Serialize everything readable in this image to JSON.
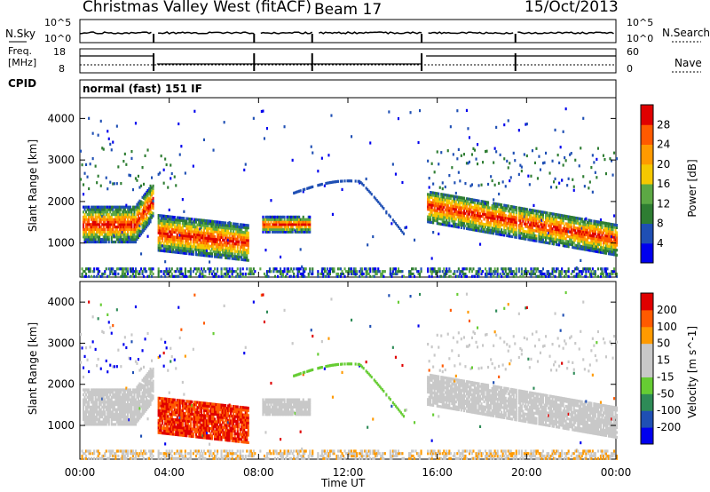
{
  "header": {
    "station": "Christmas Valley West (fitACF)",
    "beam": "Beam 17",
    "date": "15/Oct/2013"
  },
  "labels": {
    "nsky": "N.Sky",
    "nsearch": "N.Search",
    "freq_line1": "Freq.",
    "freq_line2": "[MHz]",
    "nave": "Nave",
    "cpid": "CPID",
    "mode": "normal (fast) 151 IF",
    "nsky_ticks": [
      "10^5",
      "10^0"
    ],
    "nsearch_ticks": [
      "10^5",
      "10^0"
    ],
    "freq_ticks": [
      "18",
      "8"
    ],
    "nave_ticks": [
      "60",
      "0"
    ]
  },
  "colors": {
    "power_scale": [
      "#0000ee",
      "#1f4fb4",
      "#2e7d32",
      "#5ca844",
      "#f5c800",
      "#ff9a00",
      "#ff5a00",
      "#e00000"
    ],
    "velocity_scale": [
      "#e00000",
      "#ff5a00",
      "#ff9a00",
      "#c8c8c8",
      "#c8c8c8",
      "#66cc33",
      "#2e8b57",
      "#1f4fb4",
      "#0000ee"
    ],
    "ground_scatter": "#c0c0c0"
  },
  "chart_data": [
    {
      "type": "heatmap",
      "panel": "power",
      "ylabel": "Slant Range [km]",
      "xlabel": "Time UT",
      "x_ticks": [
        "00:00",
        "04:00",
        "08:00",
        "12:00",
        "16:00",
        "20:00",
        "00:00"
      ],
      "xlim": [
        0,
        24
      ],
      "y_ticks": [
        1000,
        2000,
        3000,
        4000
      ],
      "ylim": [
        180,
        4500
      ],
      "colorbar_label": "Power [dB]",
      "colorbar_ticks": [
        4,
        8,
        12,
        16,
        20,
        24,
        28
      ],
      "colorbar_range": [
        0,
        32
      ],
      "data_gaps_ut": [
        [
          3.3,
          3.45
        ],
        [
          7.8,
          8.0
        ],
        [
          10.4,
          10.6
        ],
        [
          15.3,
          15.5
        ],
        [
          19.5,
          19.6
        ]
      ]
    },
    {
      "type": "heatmap",
      "panel": "velocity",
      "ylabel": "Slant Range [km]",
      "xlabel": "Time UT",
      "x_ticks": [
        "00:00",
        "04:00",
        "08:00",
        "12:00",
        "16:00",
        "20:00",
        "00:00"
      ],
      "xlim": [
        0,
        24
      ],
      "y_ticks": [
        1000,
        2000,
        3000,
        4000
      ],
      "ylim": [
        180,
        4500
      ],
      "colorbar_label": "Velocity [m s^-1]",
      "colorbar_ticks": [
        200,
        100,
        50,
        15,
        -15,
        -50,
        -100,
        -200
      ],
      "colorbar_range": [
        -250,
        250
      ]
    }
  ]
}
